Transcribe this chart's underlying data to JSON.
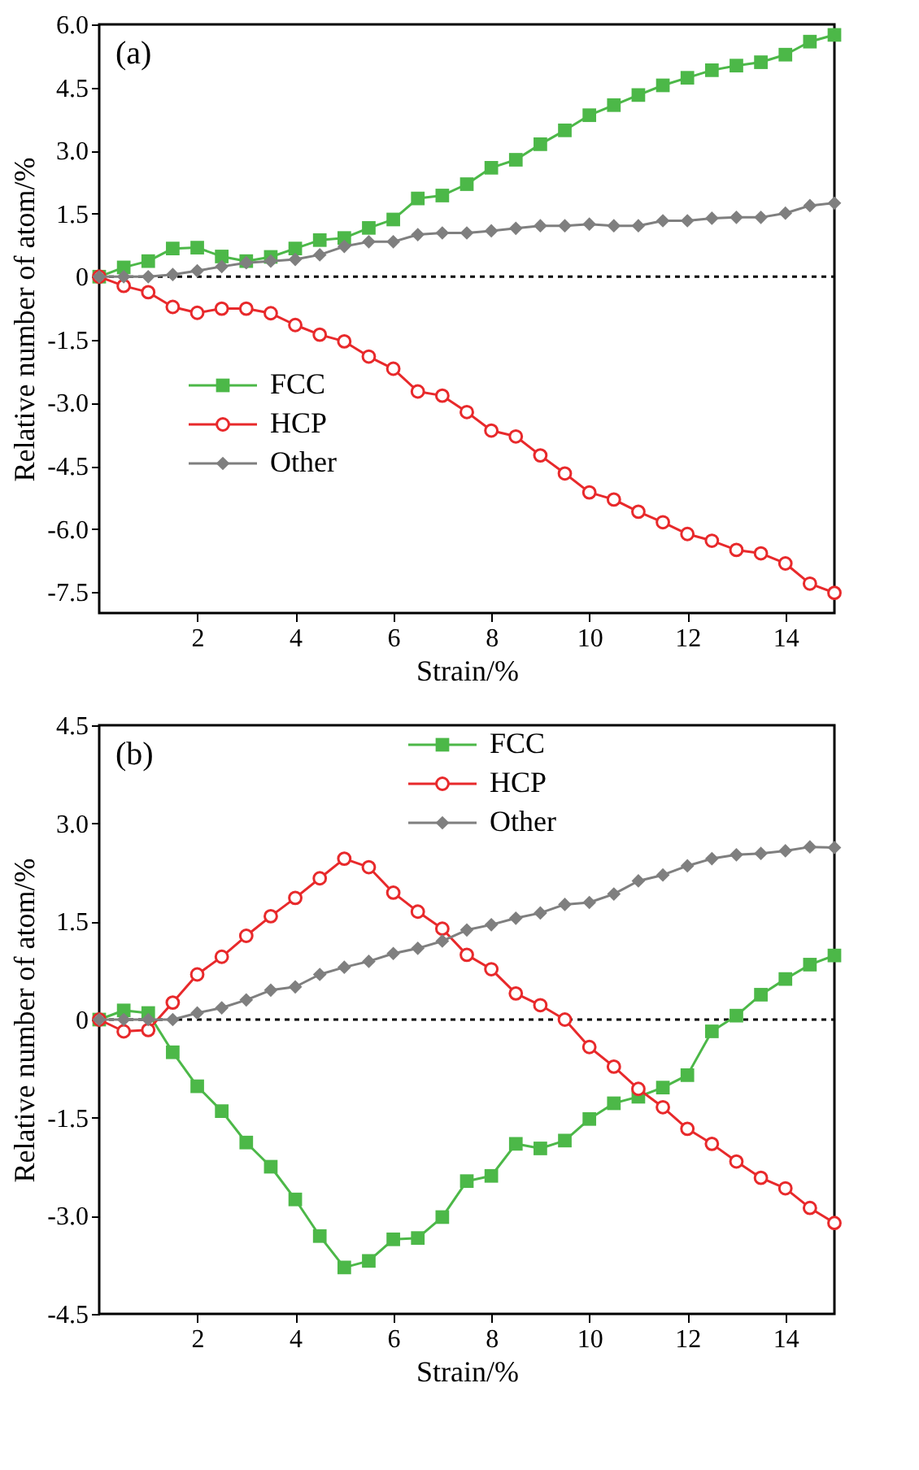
{
  "chart_data": [
    {
      "type": "line",
      "annotations": [
        "(a)"
      ],
      "xlabel": "Strain/%",
      "ylabel": "Relative number of atom/%",
      "x": [
        0,
        0.5,
        1,
        1.5,
        2,
        2.5,
        3,
        3.5,
        4,
        4.5,
        5,
        5.5,
        6,
        6.5,
        7,
        7.5,
        8,
        8.5,
        9,
        9.5,
        10,
        10.5,
        11,
        11.5,
        12,
        12.5,
        13,
        13.5,
        14,
        14.5,
        15
      ],
      "series": [
        {
          "name": "FCC",
          "color": "#4cb848",
          "marker": "square",
          "values": [
            0,
            0.22,
            0.37,
            0.67,
            0.69,
            0.48,
            0.37,
            0.47,
            0.67,
            0.87,
            0.92,
            1.16,
            1.36,
            1.86,
            1.93,
            2.2,
            2.59,
            2.78,
            3.15,
            3.48,
            3.84,
            4.08,
            4.32,
            4.55,
            4.73,
            4.91,
            5.02,
            5.1,
            5.28,
            5.59,
            5.75
          ]
        },
        {
          "name": "HCP",
          "color": "#e8292b",
          "marker": "circle",
          "values": [
            0,
            -0.22,
            -0.37,
            -0.72,
            -0.86,
            -0.76,
            -0.76,
            -0.87,
            -1.15,
            -1.38,
            -1.54,
            -1.9,
            -2.19,
            -2.73,
            -2.83,
            -3.22,
            -3.66,
            -3.8,
            -4.25,
            -4.68,
            -5.13,
            -5.3,
            -5.59,
            -5.84,
            -6.12,
            -6.28,
            -6.5,
            -6.58,
            -6.82,
            -7.3,
            -7.52
          ]
        },
        {
          "name": "Other",
          "color": "#7f7f7f",
          "marker": "diamond",
          "values": [
            0,
            0,
            0,
            0.05,
            0.14,
            0.24,
            0.33,
            0.37,
            0.41,
            0.52,
            0.72,
            0.83,
            0.83,
            1.0,
            1.04,
            1.04,
            1.09,
            1.15,
            1.21,
            1.21,
            1.25,
            1.21,
            1.21,
            1.33,
            1.33,
            1.39,
            1.41,
            1.41,
            1.51,
            1.69,
            1.75
          ]
        }
      ],
      "xlim": [
        0,
        15
      ],
      "xticks": [
        2,
        4,
        6,
        8,
        10,
        12,
        14
      ],
      "ylim": [
        -8,
        6
      ],
      "yticks": [
        {
          "value": -7.5,
          "label": "-7.5"
        },
        {
          "value": -6,
          "label": "-6.0"
        },
        -4.5,
        {
          "value": -3,
          "label": "-3.0"
        },
        -1.5,
        0,
        1.5,
        {
          "value": 3,
          "label": "3.0"
        },
        4.5,
        {
          "value": 6,
          "label": "6.0"
        }
      ],
      "ref_lines": [
        {
          "axis": "y",
          "value": 0,
          "line_style": "dotted",
          "color": "#000000"
        }
      ],
      "legend": "bottom left",
      "grid": false
    },
    {
      "type": "line",
      "annotations": [
        "(b)"
      ],
      "xlabel": "Strain/%",
      "ylabel": "Relative number of atom/%",
      "x": [
        0,
        0.5,
        1,
        1.5,
        2,
        2.5,
        3,
        3.5,
        4,
        4.5,
        5,
        5.5,
        6,
        6.5,
        7,
        7.5,
        8,
        8.5,
        9,
        9.5,
        10,
        10.5,
        11,
        11.5,
        12,
        12.5,
        13,
        13.5,
        14,
        14.5,
        15
      ],
      "series": [
        {
          "name": "FCC",
          "color": "#4cb848",
          "marker": "square",
          "values": [
            0,
            0.14,
            0.1,
            -0.5,
            -1.02,
            -1.4,
            -1.88,
            -2.25,
            -2.75,
            -3.31,
            -3.79,
            -3.69,
            -3.36,
            -3.34,
            -3.02,
            -2.47,
            -2.39,
            -1.9,
            -1.97,
            -1.85,
            -1.52,
            -1.28,
            -1.18,
            -1.04,
            -0.85,
            -0.18,
            0.06,
            0.38,
            0.62,
            0.84,
            0.98
          ]
        },
        {
          "name": "HCP",
          "color": "#e8292b",
          "marker": "circle",
          "values": [
            0,
            -0.18,
            -0.16,
            0.26,
            0.69,
            0.96,
            1.28,
            1.58,
            1.86,
            2.16,
            2.46,
            2.33,
            1.94,
            1.65,
            1.39,
            0.99,
            0.77,
            0.4,
            0.22,
            0,
            -0.42,
            -0.72,
            -1.06,
            -1.34,
            -1.67,
            -1.9,
            -2.17,
            -2.42,
            -2.58,
            -2.88,
            -3.11
          ]
        },
        {
          "name": "Other",
          "color": "#7f7f7f",
          "marker": "diamond",
          "values": [
            0,
            0,
            0,
            0,
            0.1,
            0.18,
            0.3,
            0.45,
            0.5,
            0.69,
            0.8,
            0.89,
            1.01,
            1.09,
            1.2,
            1.37,
            1.45,
            1.55,
            1.63,
            1.76,
            1.79,
            1.92,
            2.12,
            2.21,
            2.35,
            2.46,
            2.52,
            2.54,
            2.58,
            2.64,
            2.63
          ]
        }
      ],
      "xlim": [
        0,
        15
      ],
      "xticks": [
        2,
        4,
        6,
        8,
        10,
        12,
        14
      ],
      "ylim": [
        -4.5,
        4.5
      ],
      "yticks": [
        -4.5,
        {
          "value": -3,
          "label": "-3.0"
        },
        -1.5,
        0,
        1.5,
        {
          "value": 3,
          "label": "3.0"
        },
        4.5
      ],
      "ref_lines": [
        {
          "axis": "y",
          "value": 0,
          "line_style": "dotted",
          "color": "#000000"
        }
      ],
      "legend": "top",
      "grid": false
    }
  ]
}
